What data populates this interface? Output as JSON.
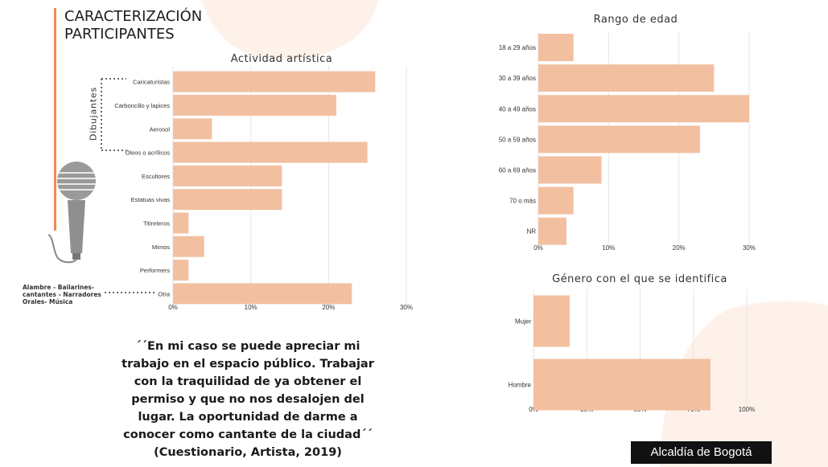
{
  "page": {
    "title": "CARACTERIZACIÓN PARTICIPANTES",
    "group_label": "Dibujantes",
    "other_note": "Alambre - Bailarines-cantantes - Narradores Orales- Música",
    "quote": "´´En mi caso se puede apreciar mi trabajo en el espacio público. Trabajar con la traquilidad de ya obtener el permiso y que no nos desalojen del lugar. La oportunidad de darme a conocer como cantante de la ciudad´´",
    "citation": "(Cuestionario, Artista, 2019)",
    "logo_text": "Alcaldía de Bogotá",
    "colors": {
      "bar": "#f2c0a0",
      "accent": "#ef8a55",
      "blob": "#fdf1ea"
    },
    "icons": [
      "microphone-icon"
    ]
  },
  "chart_data": [
    {
      "type": "bar",
      "orientation": "horizontal",
      "title": "Actividad artística",
      "categories": [
        "Caricaturistas",
        "Carboncillo y lapices",
        "Aerosol",
        "Óleos o acrílicos",
        "Escultores",
        "Estatuas vivas",
        "Titireteros",
        "Mimos",
        "Performers",
        "Otra"
      ],
      "values": [
        26,
        21,
        5,
        25,
        14,
        14,
        2,
        4,
        2,
        23
      ],
      "xlim": [
        0,
        30
      ],
      "ticks": [
        "0%",
        "10%",
        "20%",
        "30%"
      ],
      "grid": true
    },
    {
      "type": "bar",
      "orientation": "horizontal",
      "title": "Rango de edad",
      "categories": [
        "18 a 29 años",
        "30 a 39 años",
        "40 a 49 años",
        "50 a 59 años",
        "60 a 69 años",
        "70 o más",
        "NR"
      ],
      "values": [
        5,
        25,
        30,
        23,
        9,
        5,
        4
      ],
      "xlim": [
        0,
        30
      ],
      "ticks": [
        "0%",
        "10%",
        "20%",
        "30%"
      ],
      "grid": true
    },
    {
      "type": "bar",
      "orientation": "horizontal",
      "title": "Género con el que se identifica",
      "categories": [
        "Mujer",
        "Hombre"
      ],
      "values": [
        17,
        83
      ],
      "xlim": [
        0,
        100
      ],
      "ticks": [
        "0%",
        "25%",
        "50%",
        "75%",
        "100%"
      ],
      "grid": true
    }
  ]
}
